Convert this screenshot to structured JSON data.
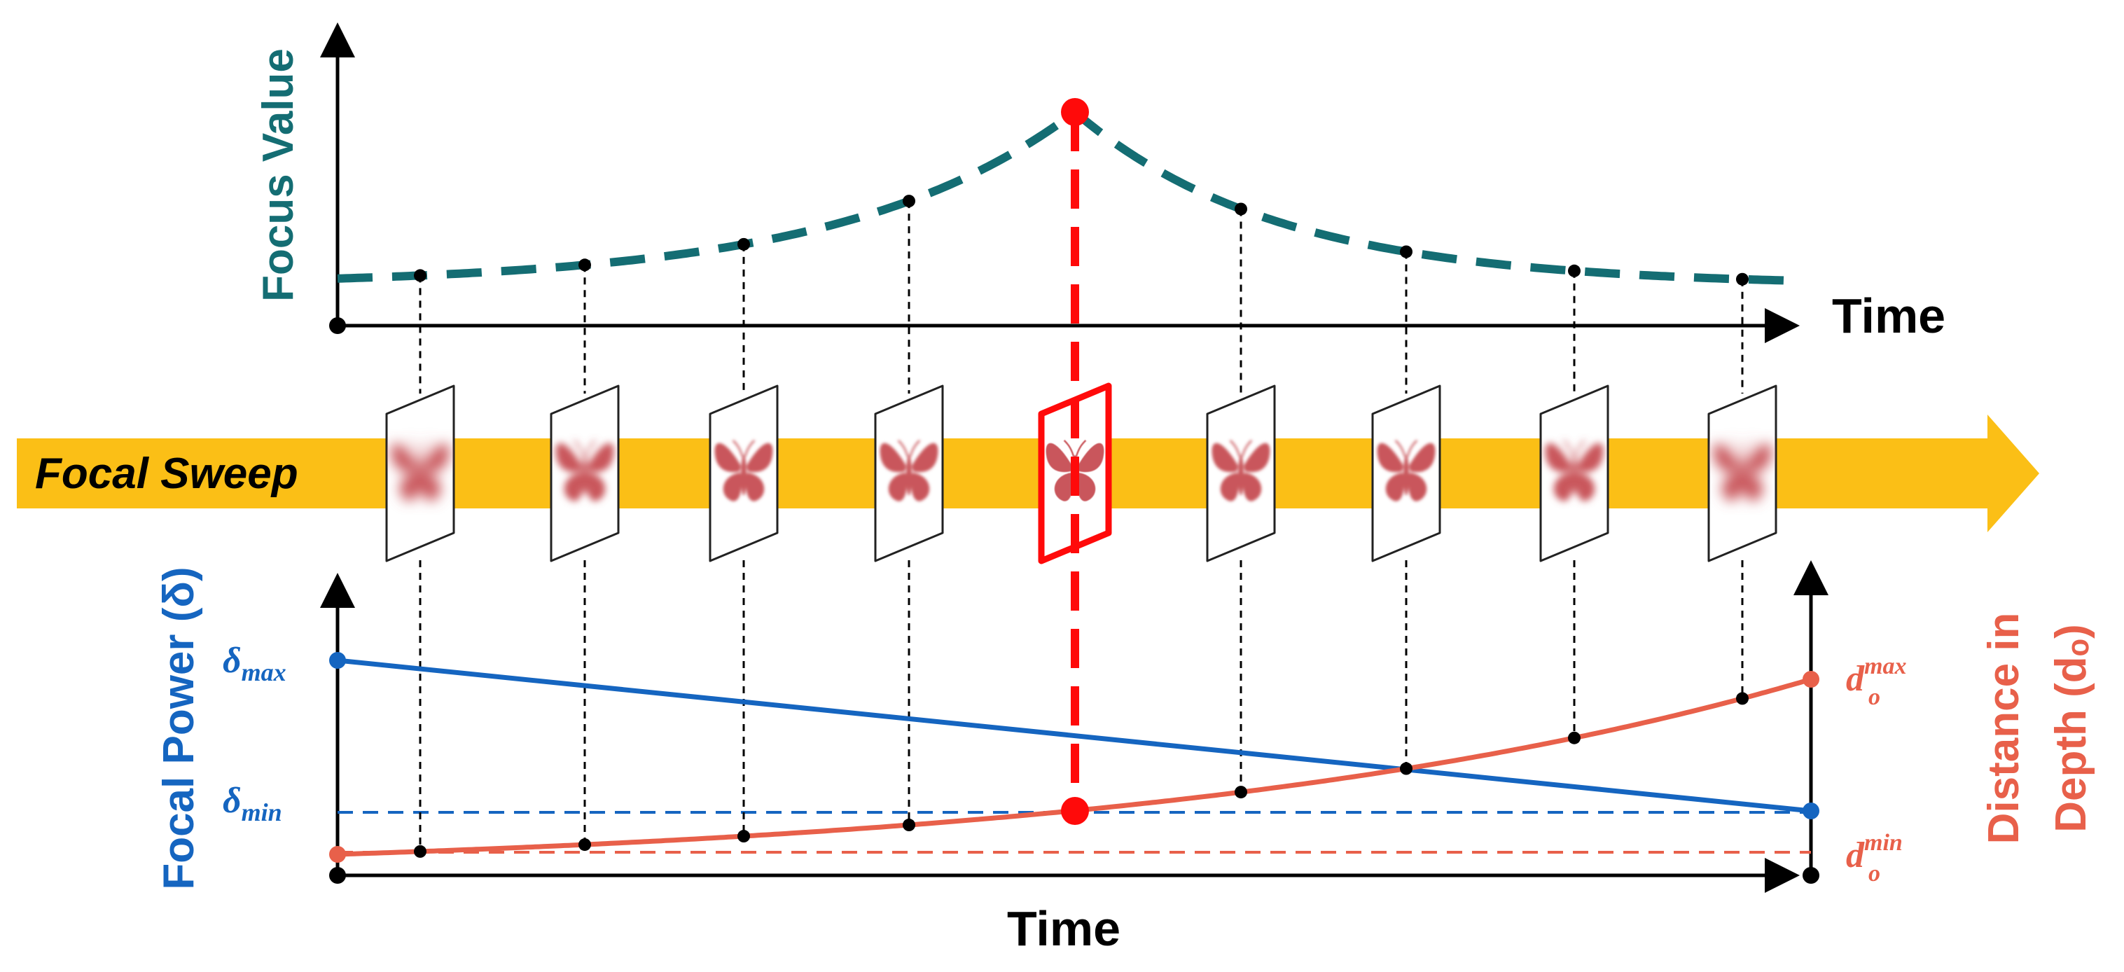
{
  "top_panel": {
    "ylabel": "Focus Value",
    "xlabel": "Time"
  },
  "banner": {
    "label": "Focal Sweep"
  },
  "bottom_panel": {
    "xlabel": "Time",
    "left_ylabel": "Focal Power (δ)",
    "right_ylabel_line1": "Distance in",
    "right_ylabel_line2": "Depth (dₒ)",
    "delta_max": {
      "base": "δ",
      "sub": "max"
    },
    "delta_min": {
      "base": "δ",
      "sub": "min"
    },
    "d_max": {
      "base": "d",
      "sub": "o",
      "sup": "max"
    },
    "d_min": {
      "base": "d",
      "sub": "o",
      "sup": "min"
    }
  },
  "colors": {
    "focus_curve": "#146d73",
    "focal_power": "#1565c0",
    "depth": "#e8604a",
    "highlight": "#ff0a0a",
    "banner": "#fbbf16",
    "axis": "#000000",
    "butterfly": "#c9565c"
  },
  "frames": {
    "count": 9,
    "in_focus_index": 4,
    "icon": "butterfly-icon"
  }
}
